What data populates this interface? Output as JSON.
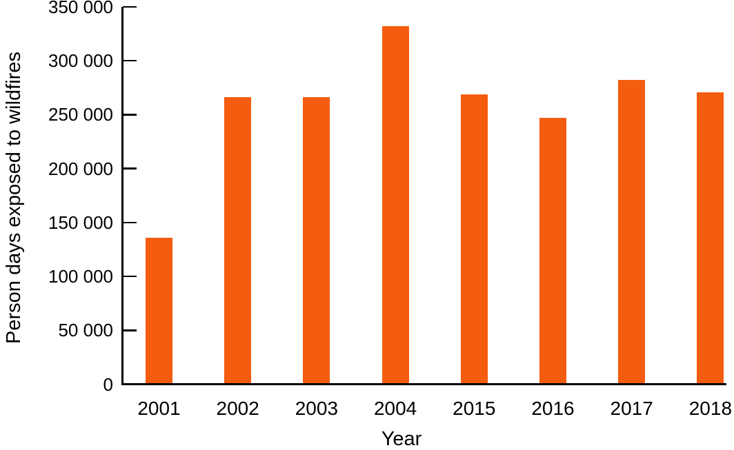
{
  "chart_data": {
    "type": "bar",
    "categories": [
      "2001",
      "2002",
      "2003",
      "2004",
      "2015",
      "2016",
      "2017",
      "2018"
    ],
    "values": [
      136000,
      266000,
      266000,
      332000,
      269000,
      247000,
      282000,
      271000
    ],
    "title": "",
    "xlabel": "Year",
    "ylabel": "Person days exposed to wildfires",
    "ylim": [
      0,
      350000
    ],
    "ytick_interval": 50000,
    "ytick_labels": [
      "0",
      "50 000",
      "100 000",
      "150 000",
      "200 000",
      "250 000",
      "300 000",
      "350 000"
    ],
    "grid": false,
    "legend": false,
    "bar_color": "#F45C0F",
    "axis_color": "#000000",
    "text_color": "#000000",
    "background_color": "#FFFFFF"
  }
}
